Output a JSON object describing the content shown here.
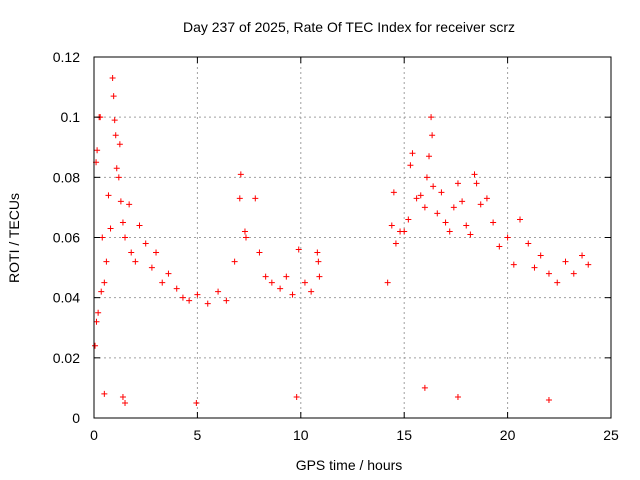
{
  "chart_data": {
    "type": "scatter",
    "title": "Day 237 of 2025, Rate Of TEC Index for receiver scrz",
    "xlabel": "GPS time / hours",
    "ylabel": "ROTI / TECUs",
    "xlim": [
      0,
      25
    ],
    "ylim": [
      0,
      0.12
    ],
    "x_ticks": [
      0,
      5,
      10,
      15,
      20,
      25
    ],
    "x_tick_labels": [
      "0",
      "5",
      "10",
      "15",
      "20",
      "25"
    ],
    "y_ticks": [
      0,
      0.02,
      0.04,
      0.06,
      0.08,
      0.1,
      0.12
    ],
    "y_tick_labels": [
      "0",
      "0.02",
      "0.04",
      "0.06",
      "0.08",
      "0.1",
      "0.12"
    ],
    "grid": true,
    "marker": "plus",
    "color": "#ff0000",
    "data_gap_hours": [
      11.0,
      14.1
    ],
    "series": [
      {
        "points": [
          [
            0.05,
            0.024
          ],
          [
            0.1,
            0.085
          ],
          [
            0.12,
            0.032
          ],
          [
            0.15,
            0.089
          ],
          [
            0.2,
            0.035
          ],
          [
            0.25,
            0.1
          ],
          [
            0.3,
            0.1
          ],
          [
            0.35,
            0.042
          ],
          [
            0.4,
            0.06
          ],
          [
            0.5,
            0.045
          ],
          [
            0.6,
            0.052
          ],
          [
            0.7,
            0.074
          ],
          [
            0.8,
            0.063
          ],
          [
            0.9,
            0.113
          ],
          [
            0.95,
            0.107
          ],
          [
            1.0,
            0.099
          ],
          [
            1.05,
            0.094
          ],
          [
            1.1,
            0.083
          ],
          [
            1.2,
            0.08
          ],
          [
            1.25,
            0.091
          ],
          [
            1.3,
            0.072
          ],
          [
            1.4,
            0.065
          ],
          [
            1.5,
            0.06
          ],
          [
            1.7,
            0.071
          ],
          [
            1.8,
            0.055
          ],
          [
            2.0,
            0.052
          ],
          [
            2.2,
            0.064
          ],
          [
            2.5,
            0.058
          ],
          [
            2.8,
            0.05
          ],
          [
            3.0,
            0.055
          ],
          [
            3.3,
            0.045
          ],
          [
            3.6,
            0.048
          ],
          [
            4.0,
            0.043
          ],
          [
            4.3,
            0.04
          ],
          [
            4.6,
            0.039
          ],
          [
            5.0,
            0.041
          ],
          [
            5.5,
            0.038
          ],
          [
            6.0,
            0.042
          ],
          [
            6.4,
            0.039
          ],
          [
            6.8,
            0.052
          ],
          [
            7.1,
            0.081
          ],
          [
            7.05,
            0.073
          ],
          [
            7.3,
            0.062
          ],
          [
            7.35,
            0.06
          ],
          [
            7.8,
            0.073
          ],
          [
            8.0,
            0.055
          ],
          [
            8.3,
            0.047
          ],
          [
            8.6,
            0.045
          ],
          [
            9.0,
            0.043
          ],
          [
            9.3,
            0.047
          ],
          [
            9.6,
            0.041
          ],
          [
            9.9,
            0.056
          ],
          [
            10.2,
            0.045
          ],
          [
            10.5,
            0.042
          ],
          [
            10.8,
            0.055
          ],
          [
            10.85,
            0.052
          ],
          [
            10.9,
            0.047
          ],
          [
            14.2,
            0.045
          ],
          [
            14.4,
            0.064
          ],
          [
            14.5,
            0.075
          ],
          [
            14.6,
            0.058
          ],
          [
            14.8,
            0.062
          ],
          [
            15.0,
            0.062
          ],
          [
            15.2,
            0.066
          ],
          [
            15.3,
            0.084
          ],
          [
            15.4,
            0.088
          ],
          [
            15.6,
            0.073
          ],
          [
            15.8,
            0.074
          ],
          [
            16.0,
            0.07
          ],
          [
            16.1,
            0.08
          ],
          [
            16.2,
            0.087
          ],
          [
            16.3,
            0.1
          ],
          [
            16.35,
            0.094
          ],
          [
            16.4,
            0.077
          ],
          [
            16.6,
            0.068
          ],
          [
            16.8,
            0.075
          ],
          [
            17.0,
            0.065
          ],
          [
            17.2,
            0.062
          ],
          [
            17.4,
            0.07
          ],
          [
            17.6,
            0.078
          ],
          [
            17.8,
            0.072
          ],
          [
            18.0,
            0.064
          ],
          [
            18.2,
            0.061
          ],
          [
            18.4,
            0.081
          ],
          [
            18.5,
            0.078
          ],
          [
            18.7,
            0.071
          ],
          [
            19.0,
            0.073
          ],
          [
            19.3,
            0.065
          ],
          [
            19.6,
            0.057
          ],
          [
            20.0,
            0.06
          ],
          [
            20.3,
            0.051
          ],
          [
            20.6,
            0.066
          ],
          [
            21.0,
            0.058
          ],
          [
            21.3,
            0.05
          ],
          [
            21.6,
            0.054
          ],
          [
            22.0,
            0.048
          ],
          [
            22.4,
            0.045
          ],
          [
            22.8,
            0.052
          ],
          [
            23.2,
            0.048
          ],
          [
            23.6,
            0.054
          ],
          [
            23.9,
            0.051
          ],
          [
            0.5,
            0.008
          ],
          [
            1.4,
            0.007
          ],
          [
            1.5,
            0.005
          ],
          [
            4.95,
            0.005
          ],
          [
            9.8,
            0.007
          ],
          [
            16.0,
            0.01
          ],
          [
            17.6,
            0.007
          ],
          [
            22.0,
            0.006
          ]
        ]
      }
    ]
  }
}
